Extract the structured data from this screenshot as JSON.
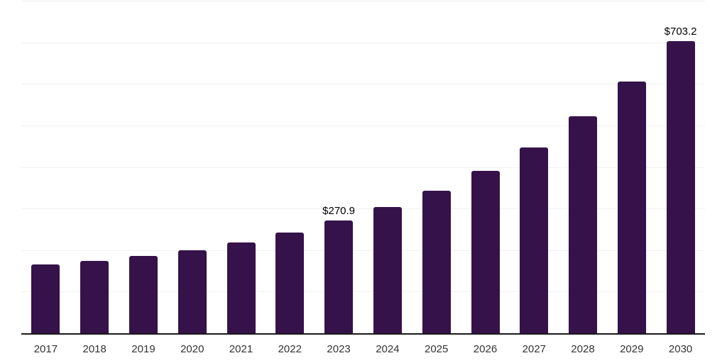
{
  "chart_data": {
    "type": "bar",
    "title": "",
    "xlabel": "",
    "ylabel": "",
    "categories": [
      "2017",
      "2018",
      "2019",
      "2020",
      "2021",
      "2022",
      "2023",
      "2024",
      "2025",
      "2026",
      "2027",
      "2028",
      "2029",
      "2030"
    ],
    "values": [
      166.2,
      174.2,
      186.2,
      199.8,
      219.1,
      241.8,
      270.9,
      303.0,
      343.5,
      391.5,
      447.8,
      521.2,
      606.0,
      703.2
    ],
    "data_labels": [
      "",
      "",
      "",
      "",
      "",
      "",
      "$270.9",
      "",
      "",
      "",
      "",
      "",
      "",
      "$703.2"
    ],
    "value_prefix": "$",
    "ylim": [
      0,
      800
    ],
    "gridline_step": 100,
    "grid": true,
    "legend": false,
    "y_axis_tick_labels_visible": false
  },
  "colors": {
    "bar": "#35124a",
    "axis": "#1a1a1a",
    "gridline": "#f0f0f0",
    "x_label": "#333333",
    "data_label": "#000000",
    "background": "#ffffff"
  }
}
